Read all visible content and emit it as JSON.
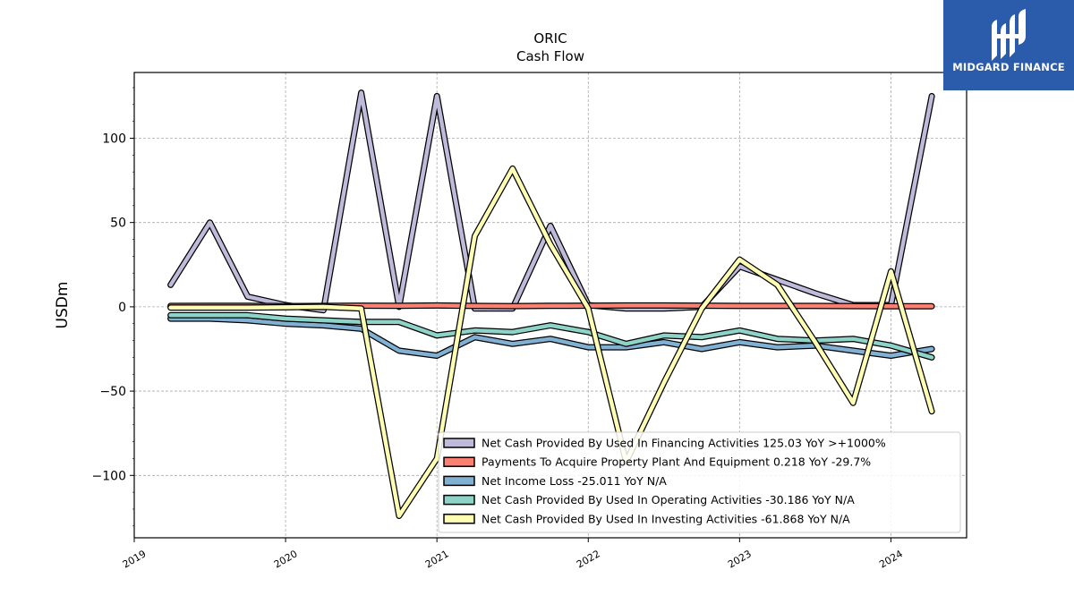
{
  "chart_data": {
    "type": "line",
    "title": "ORIC",
    "subtitle": "Cash Flow",
    "ylabel": "USDm",
    "xlabel": "",
    "ylim": [
      -137,
      139
    ],
    "xlim": [
      2019.0,
      2024.5
    ],
    "yticks": [
      100,
      50,
      0,
      -50,
      -100
    ],
    "ytick_labels": [
      "100",
      "50",
      "0",
      "−50",
      "−100"
    ],
    "xticks": [
      2019,
      2020,
      2021,
      2022,
      2023,
      2024
    ],
    "xtick_labels": [
      "2019",
      "2020",
      "2021",
      "2022",
      "2023",
      "2024"
    ],
    "grid": true,
    "legend_position": "lower-right",
    "x": [
      2019.24,
      2019.5,
      2019.75,
      2020.0,
      2020.25,
      2020.5,
      2020.75,
      2021.0,
      2021.25,
      2021.5,
      2021.75,
      2022.0,
      2022.25,
      2022.5,
      2022.75,
      2023.0,
      2023.25,
      2023.5,
      2023.75,
      2024.0,
      2024.27
    ],
    "series": [
      {
        "name": "Net Cash Provided By Used In Financing Activities",
        "legend": "Net Cash Provided By Used In Financing Activities  125.03 YoY >+1000%",
        "color": "#bebada",
        "values": [
          13,
          50,
          6,
          1,
          -2,
          127,
          0,
          125,
          -1,
          -1,
          48,
          1,
          -1,
          -1,
          0,
          24,
          16,
          8,
          1,
          1,
          125
        ]
      },
      {
        "name": "Payments To Acquire Property Plant And Equipment",
        "legend": "Payments To Acquire Property Plant And Equipment  0.218 YoY -29.7%",
        "color": "#fb8072",
        "values": [
          0.5,
          0.6,
          0.6,
          0.4,
          0.5,
          0.7,
          0.6,
          0.8,
          0.5,
          0.4,
          0.6,
          0.7,
          0.8,
          0.8,
          0.7,
          0.5,
          0.5,
          0.5,
          0.4,
          0.3,
          0.3
        ]
      },
      {
        "name": "Net Income Loss",
        "legend": "Net Income Loss  -25.011 YoY N/A",
        "color": "#80b1d3",
        "values": [
          -7,
          -7,
          -8,
          -10,
          -11,
          -13,
          -26,
          -29,
          -18,
          -22,
          -19,
          -24,
          -24,
          -21,
          -25,
          -21,
          -24,
          -23,
          -26,
          -29,
          -25
        ]
      },
      {
        "name": "Net Cash Provided By Used In Operating Activities",
        "legend": "Net Cash Provided By Used In Operating Activities  -30.186 YoY N/A",
        "color": "#8dd3c7",
        "values": [
          -5,
          -5,
          -5,
          -7,
          -8,
          -9,
          -9,
          -17,
          -14,
          -15,
          -11,
          -15,
          -22,
          -17,
          -18,
          -14,
          -19,
          -20,
          -19,
          -23,
          -30
        ]
      },
      {
        "name": "Net Cash Provided By Used In Investing Activities",
        "legend": "Net Cash Provided By Used In Investing Activities  -61.868 YoY N/A",
        "color": "#ffffb3",
        "values": [
          -0.5,
          -0.5,
          -0.5,
          -0.3,
          0,
          -1,
          -124,
          -90,
          42,
          82,
          37,
          -1,
          -92,
          -45,
          -1,
          28,
          13,
          -21,
          -57,
          21,
          -62
        ]
      }
    ]
  },
  "logo": {
    "text": "MIDGARD FINANCE"
  }
}
